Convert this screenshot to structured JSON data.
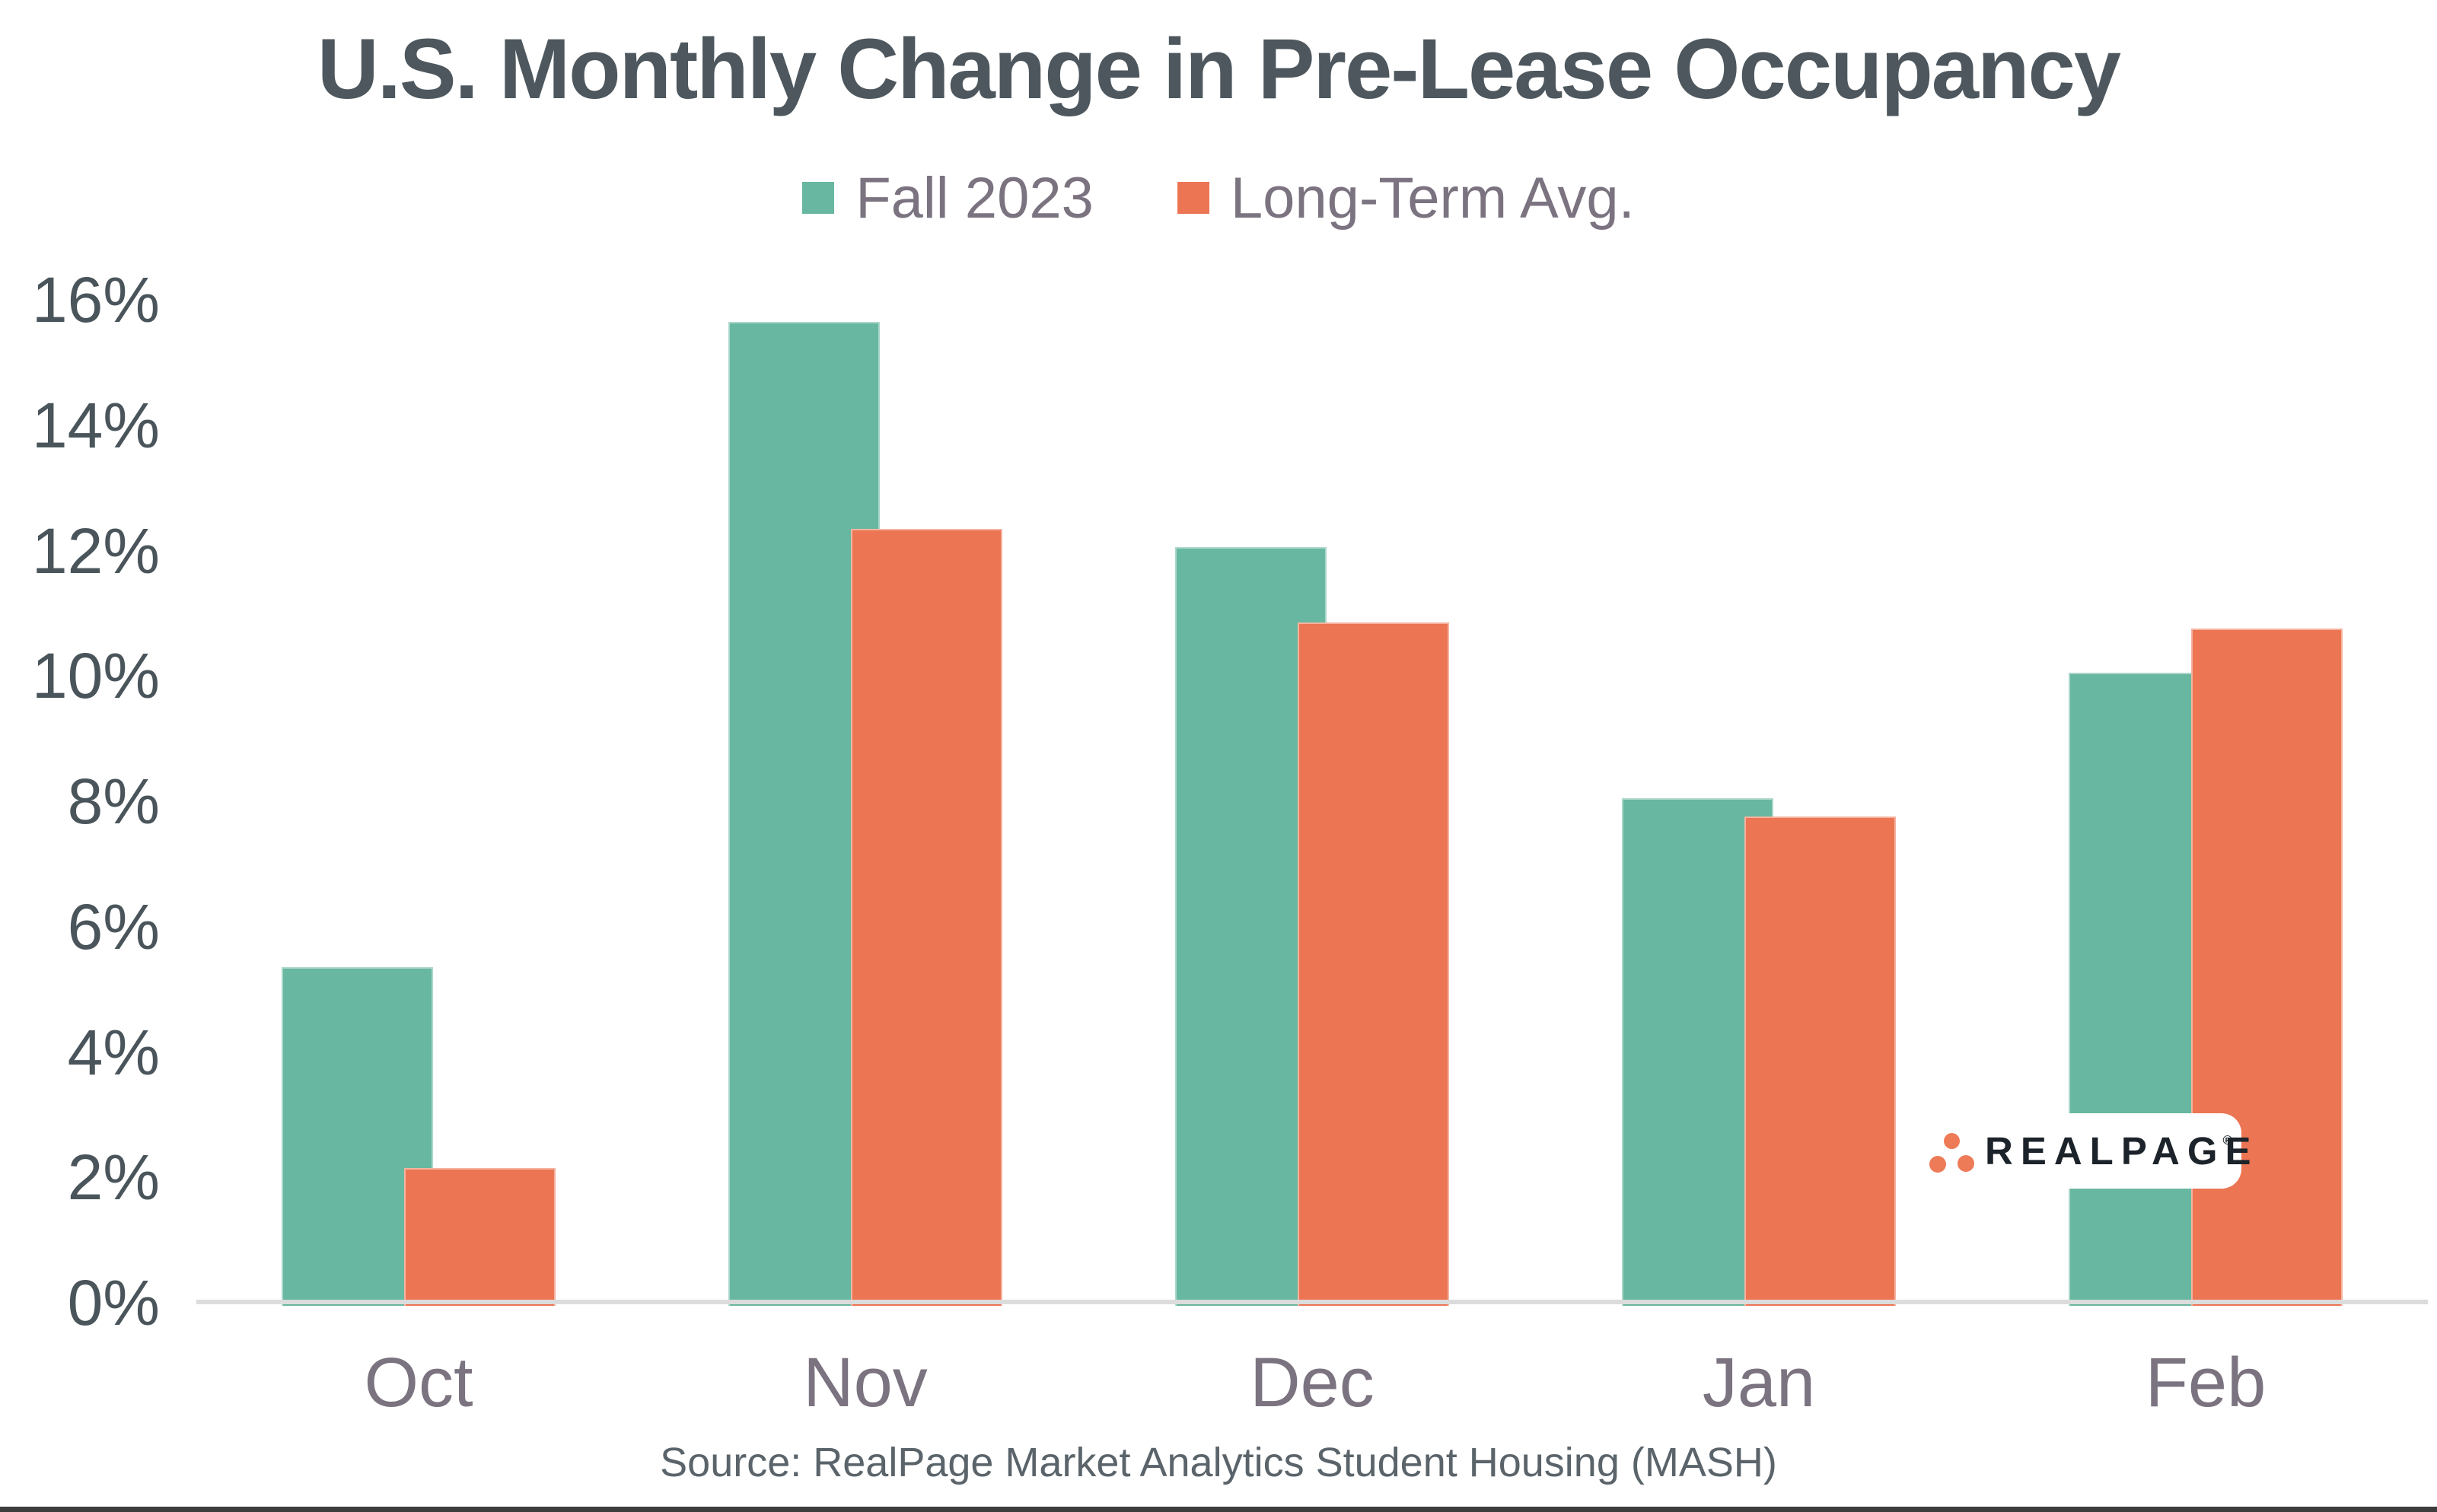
{
  "chart_data": {
    "type": "bar",
    "title": "U.S. Monthly Change in Pre-Lease Occupancy",
    "categories": [
      "Oct",
      "Nov",
      "Dec",
      "Jan",
      "Feb"
    ],
    "series": [
      {
        "name": "Fall 2023",
        "color": "#68b7a0",
        "values": [
          5.4,
          15.7,
          12.1,
          8.1,
          10.1
        ]
      },
      {
        "name": "Long-Term Avg.",
        "color": "#ec7553",
        "values": [
          2.2,
          12.4,
          10.9,
          7.8,
          10.8
        ]
      }
    ],
    "xlabel": "",
    "ylabel": "",
    "ylim": [
      0,
      16
    ],
    "ytick_step": 2,
    "ytick_suffix": "%",
    "grid": "off",
    "legend_position": "top",
    "bar_style": "overlapping-pairs",
    "axis_line_color": "#dcdcdc",
    "source": "Source: RealPage Market Analytics Student Housing (MASH)"
  },
  "logo": {
    "text": "REALPAGE",
    "registered_mark": "®",
    "dot_color": "#ee7b57"
  }
}
